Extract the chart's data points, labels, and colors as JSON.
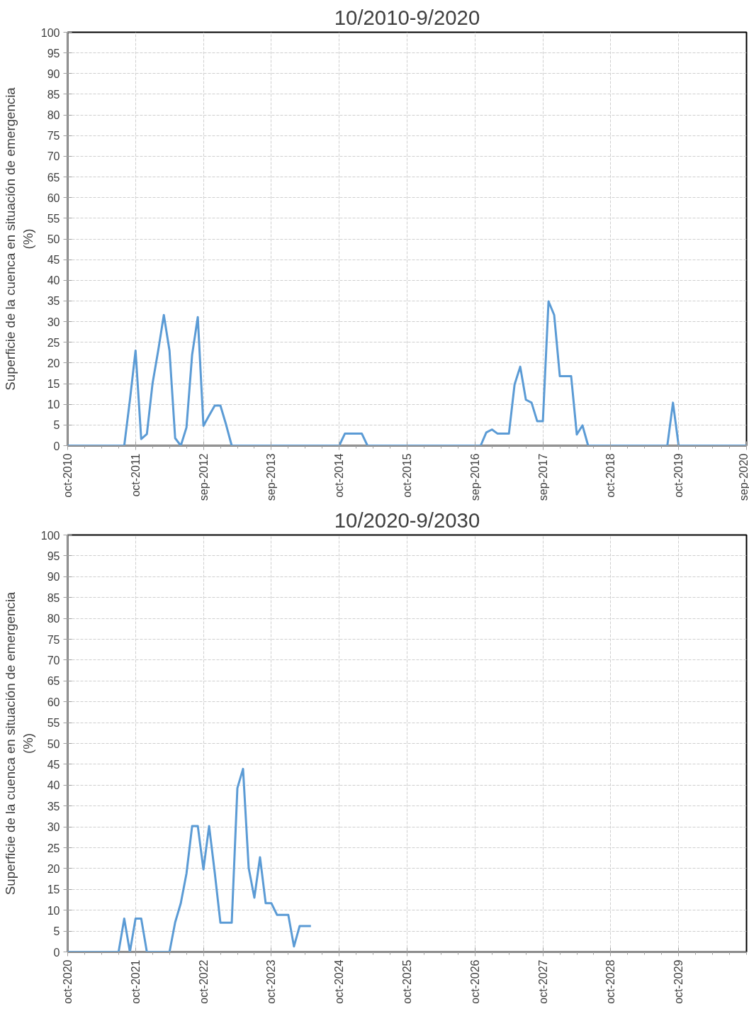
{
  "chart_data": [
    {
      "type": "line",
      "title": "10/2010-9/2020",
      "ylabel": "Superficie de la cuenca en situación de emergencia (%)",
      "categories": [
        "oct-2010",
        null,
        null,
        null,
        null,
        null,
        null,
        null,
        null,
        null,
        null,
        null,
        "oct-2011",
        null,
        null,
        null,
        null,
        null,
        null,
        null,
        null,
        null,
        null,
        null,
        "sep-2012",
        null,
        null,
        null,
        null,
        null,
        null,
        null,
        null,
        null,
        null,
        null,
        "sep-2013",
        null,
        null,
        null,
        null,
        null,
        null,
        null,
        null,
        null,
        null,
        null,
        "oct-2014",
        null,
        null,
        null,
        null,
        null,
        null,
        null,
        null,
        null,
        null,
        null,
        "oct-2015",
        null,
        null,
        null,
        null,
        null,
        null,
        null,
        null,
        null,
        null,
        null,
        "sep-2016",
        null,
        null,
        null,
        null,
        null,
        null,
        null,
        null,
        null,
        null,
        null,
        "sep-2017",
        null,
        null,
        null,
        null,
        null,
        null,
        null,
        null,
        null,
        null,
        null,
        "oct-2018",
        null,
        null,
        null,
        null,
        null,
        null,
        null,
        null,
        null,
        null,
        null,
        "oct-2019",
        null,
        null,
        null,
        null,
        null,
        null,
        null,
        null,
        null,
        null,
        null,
        "sep-2020"
      ],
      "series": [
        {
          "color": "#5b9bd5",
          "values": [
            0,
            0,
            0,
            0,
            0,
            0,
            0,
            0,
            0,
            0,
            0,
            11,
            23,
            1.6,
            2.8,
            15,
            23,
            31.6,
            23,
            1.8,
            0,
            4.4,
            22,
            31.1,
            4.8,
            7.3,
            9.7,
            9.7,
            5.1,
            0,
            0,
            0,
            0,
            0,
            0,
            0,
            0,
            0,
            0,
            0,
            0,
            0,
            0,
            0,
            0,
            0,
            0,
            0,
            0,
            2.9,
            2.9,
            2.9,
            2.9,
            0,
            0,
            0,
            0,
            0,
            0,
            0,
            0,
            0,
            0,
            0,
            0,
            0,
            0,
            0,
            0,
            0,
            0,
            0,
            0,
            0,
            3.2,
            3.9,
            2.9,
            2.9,
            2.9,
            14.8,
            19.1,
            11.1,
            10.4,
            5.9,
            5.9,
            34.9,
            31.6,
            16.8,
            16.8,
            16.8,
            2.7,
            4.9,
            0,
            0,
            0,
            0,
            0,
            0,
            0,
            0,
            0,
            0,
            0,
            0,
            0,
            0,
            0,
            10.4,
            0,
            0,
            0,
            0,
            0,
            0,
            0,
            0,
            0,
            0,
            0,
            0,
            0
          ]
        }
      ],
      "ylim": [
        0,
        100
      ],
      "yticks": [
        0,
        5,
        10,
        15,
        20,
        25,
        30,
        35,
        40,
        45,
        50,
        55,
        60,
        65,
        70,
        75,
        80,
        85,
        90,
        95,
        100
      ],
      "grid": true,
      "line_style": "solid",
      "marker": "none"
    },
    {
      "type": "line",
      "title": "10/2020-9/2030",
      "ylabel": "Superficie de la cuenca en situación de emergencia (%)",
      "categories": [
        "oct-2020",
        null,
        null,
        null,
        null,
        null,
        null,
        null,
        null,
        null,
        null,
        null,
        "oct-2021",
        null,
        null,
        null,
        null,
        null,
        null,
        null,
        null,
        null,
        null,
        null,
        "oct-2022",
        null,
        null,
        null,
        null,
        null,
        null,
        null,
        null,
        null,
        null,
        null,
        "oct-2023",
        null,
        null,
        null,
        null,
        null,
        null,
        null,
        null,
        null,
        null,
        null,
        "oct-2024",
        null,
        null,
        null,
        null,
        null,
        null,
        null,
        null,
        null,
        null,
        null,
        "oct-2025",
        null,
        null,
        null,
        null,
        null,
        null,
        null,
        null,
        null,
        null,
        null,
        "oct-2026",
        null,
        null,
        null,
        null,
        null,
        null,
        null,
        null,
        null,
        null,
        null,
        "oct-2027",
        null,
        null,
        null,
        null,
        null,
        null,
        null,
        null,
        null,
        null,
        null,
        "oct-2028",
        null,
        null,
        null,
        null,
        null,
        null,
        null,
        null,
        null,
        null,
        null,
        "oct-2029",
        null,
        null,
        null,
        null,
        null,
        null,
        null,
        null,
        null,
        null,
        null,
        null
      ],
      "series": [
        {
          "color": "#5b9bd5",
          "values": [
            0,
            0,
            0,
            0,
            0,
            0,
            0,
            0,
            0,
            0,
            8,
            0,
            8,
            8,
            0,
            0,
            0,
            0,
            0,
            7.1,
            11.7,
            18.8,
            30.2,
            30.2,
            19.8,
            30.2,
            19,
            7,
            7,
            7,
            39.3,
            43.9,
            20.1,
            13,
            22.7,
            11.7,
            11.7,
            8.9,
            8.9,
            8.9,
            1.3,
            6.2,
            6.2,
            6.2,
            null,
            null,
            null,
            null,
            null,
            null,
            null,
            null,
            null,
            null,
            null,
            null,
            null,
            null,
            null,
            null,
            null,
            null,
            null,
            null,
            null,
            null,
            null,
            null,
            null,
            null,
            null,
            null,
            null,
            null,
            null,
            null,
            null,
            null,
            null,
            null,
            null,
            null,
            null,
            null,
            null,
            null,
            null,
            null,
            null,
            null,
            null,
            null,
            null,
            null,
            null,
            null,
            null,
            null,
            null,
            null,
            null,
            null,
            null,
            null,
            null,
            null,
            null,
            null,
            null,
            null,
            null,
            null,
            null,
            null,
            null,
            null,
            null,
            null,
            null,
            null,
            null
          ]
        }
      ],
      "ylim": [
        0,
        100
      ],
      "yticks": [
        0,
        5,
        10,
        15,
        20,
        25,
        30,
        35,
        40,
        45,
        50,
        55,
        60,
        65,
        70,
        75,
        80,
        85,
        90,
        95,
        100
      ],
      "grid": true,
      "line_style": "solid",
      "marker": "none"
    }
  ]
}
